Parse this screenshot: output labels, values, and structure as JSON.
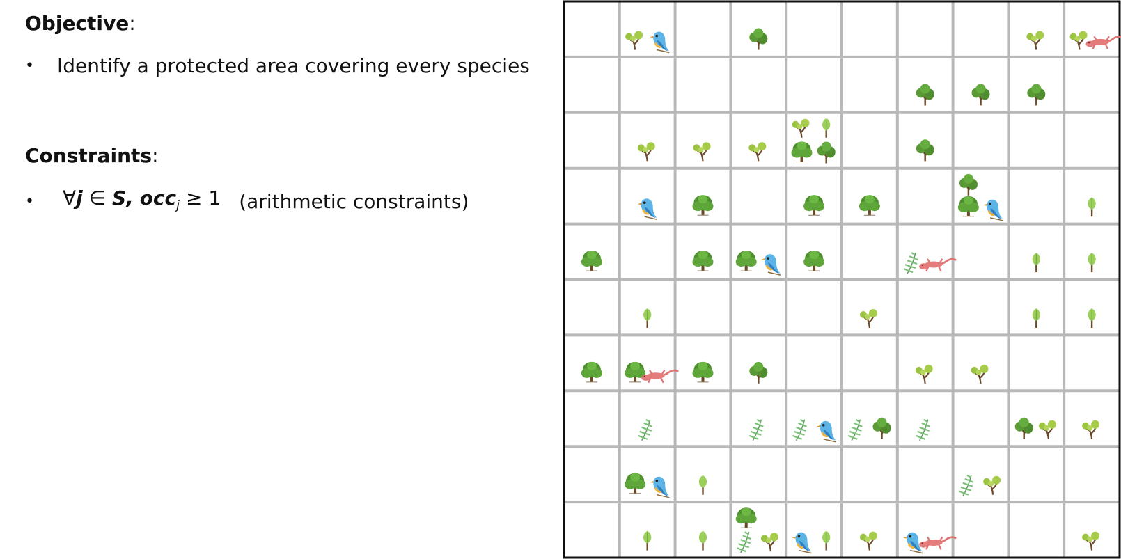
{
  "objective": {
    "title": "Objective",
    "colon": ":",
    "items": [
      {
        "bullet": "•",
        "text": "Identify a protected area covering every species"
      }
    ]
  },
  "constraints": {
    "title": "Constraints",
    "colon": ":",
    "items": [
      {
        "bullet": "•",
        "forall": "∀",
        "j": "j",
        "in": "∈",
        "set": "S,",
        "occ": "occ",
        "sub": "j",
        "rel": "≥ 1",
        "note": "(arithmetic constraints)"
      }
    ]
  },
  "grid": {
    "rows": 10,
    "cols": 10,
    "line_color": "#b8b8b8",
    "border_color": "#111111",
    "cells": [
      [
        [],
        [
          "tree-light",
          "bird"
        ],
        [],
        [
          "tree-bushy"
        ],
        [],
        [],
        [],
        [],
        [
          "tree-light"
        ],
        [
          "tree-light",
          "gecko"
        ]
      ],
      [
        [],
        [],
        [],
        [],
        [],
        [],
        [
          "tree-bushy"
        ],
        [
          "tree-bushy"
        ],
        [
          "tree-bushy"
        ],
        []
      ],
      [
        [],
        [
          "tree-light"
        ],
        [
          "tree-light"
        ],
        [
          "tree-light"
        ],
        [
          "tree-light",
          "sapling",
          "tree-round",
          "tree-bushy"
        ],
        [],
        [
          "tree-bushy"
        ],
        [],
        [],
        []
      ],
      [
        [],
        [
          "bird"
        ],
        [
          "tree-round"
        ],
        [],
        [
          "tree-round"
        ],
        [
          "tree-round"
        ],
        [],
        [
          "tree-bushy",
          "tree-round",
          "bird"
        ],
        [],
        [
          "sapling"
        ]
      ],
      [
        [
          "tree-round"
        ],
        [],
        [
          "tree-round"
        ],
        [
          "tree-round",
          "bird"
        ],
        [
          "tree-round"
        ],
        [],
        [
          "fern",
          "gecko"
        ],
        [],
        [
          "sapling"
        ],
        [
          "sapling"
        ]
      ],
      [
        [],
        [
          "sapling"
        ],
        [],
        [],
        [],
        [
          "tree-light"
        ],
        [],
        [],
        [
          "sapling"
        ],
        [
          "sapling"
        ]
      ],
      [
        [
          "tree-round"
        ],
        [
          "tree-round",
          "gecko"
        ],
        [
          "tree-round"
        ],
        [
          "tree-bushy"
        ],
        [],
        [],
        [
          "tree-light"
        ],
        [
          "tree-light"
        ],
        [],
        []
      ],
      [
        [],
        [
          "fern"
        ],
        [],
        [
          "fern"
        ],
        [
          "fern",
          "bird"
        ],
        [
          "fern",
          "tree-bushy"
        ],
        [
          "fern"
        ],
        [],
        [
          "tree-bushy",
          "tree-light"
        ],
        [
          "tree-light"
        ]
      ],
      [
        [],
        [
          "tree-round",
          "bird"
        ],
        [
          "sapling"
        ],
        [],
        [],
        [],
        [],
        [
          "fern",
          "tree-light"
        ],
        [],
        []
      ],
      [
        [],
        [
          "sapling"
        ],
        [
          "sapling"
        ],
        [
          "tree-round",
          "fern",
          "tree-light"
        ],
        [
          "bird",
          "sapling"
        ],
        [
          "tree-light"
        ],
        [
          "bird",
          "gecko"
        ],
        [],
        [],
        [
          "tree-light"
        ]
      ]
    ]
  }
}
